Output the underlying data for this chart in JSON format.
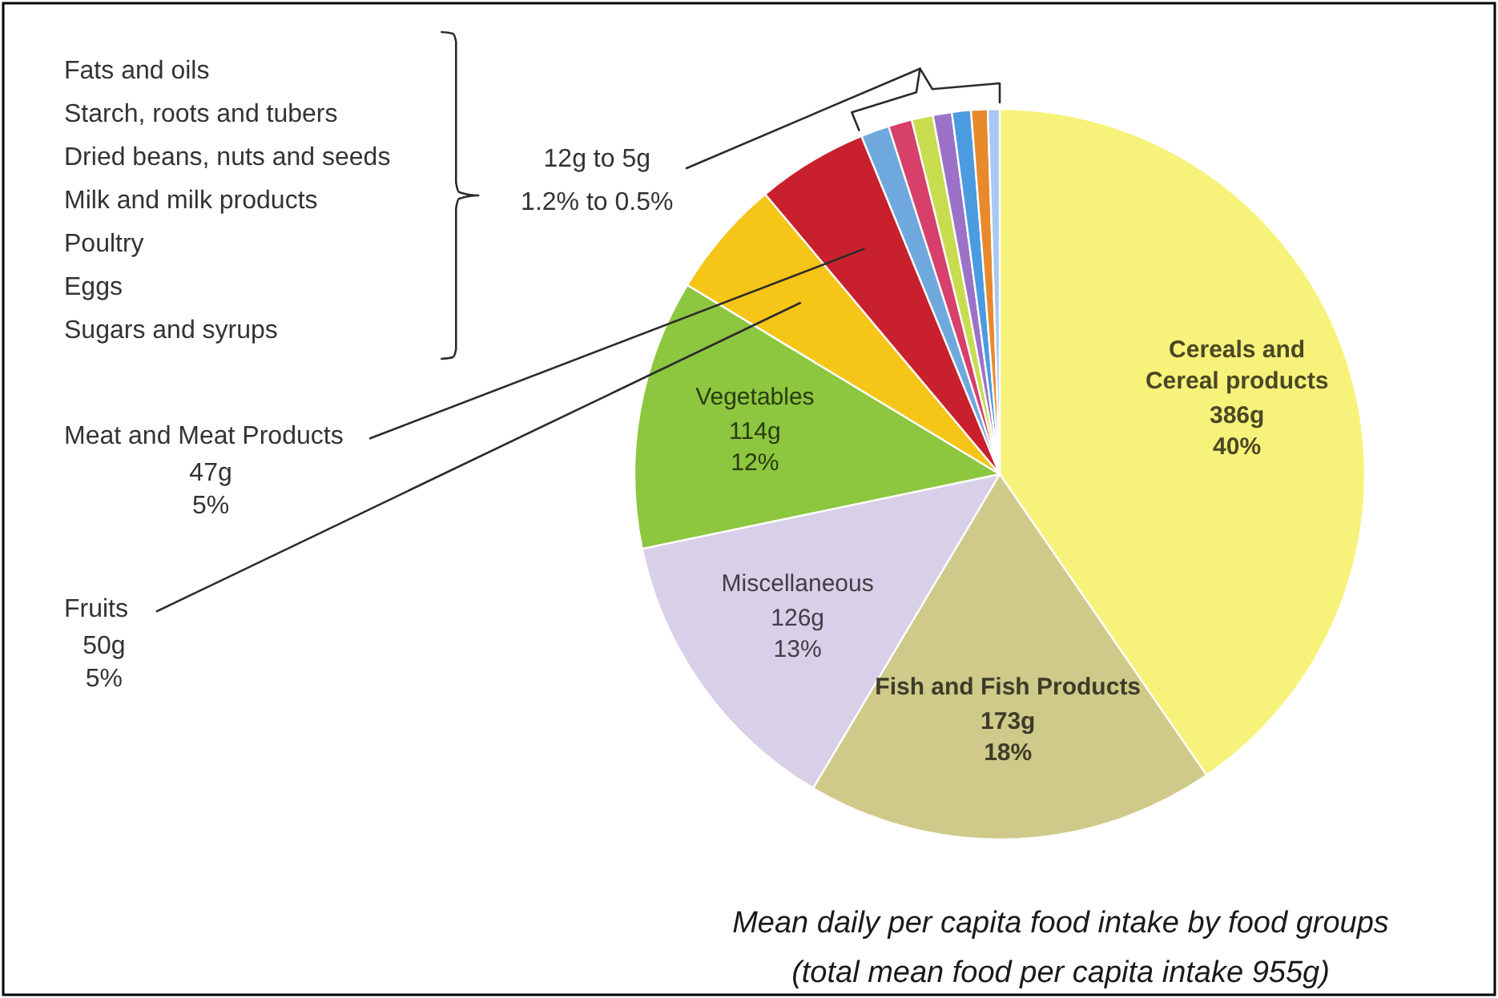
{
  "chart_data": {
    "type": "pie",
    "title": "Mean daily per capita food intake by food groups",
    "subtitle": "(total mean food per capita intake 955g)",
    "categories": [
      "Cereals and\nCereal products",
      "Fish and Fish Products",
      "Miscellaneous",
      "Vegetables",
      "Fruits",
      "Meat and Meat Products",
      null,
      null,
      null,
      null,
      null,
      null,
      null
    ],
    "values": [
      386,
      173,
      126,
      114,
      50,
      47,
      12,
      10,
      9,
      8,
      8,
      7,
      5
    ],
    "colors": [
      "#f7f27a",
      "#cfc98a",
      "#d8cfe8",
      "#8dc63f",
      "#f5c518",
      "#c8202c",
      "#6fa8dc",
      "#d6406a",
      "#c8dc50",
      "#9b72c8",
      "#4b9be0",
      "#e8892c",
      "#a8c8f0"
    ],
    "value_labels": [
      "386g\n40%",
      "173g\n18%",
      "126g\n13%",
      "114g\n12%",
      "50g\n5%",
      "47g\n5%",
      null,
      null,
      null,
      null,
      null,
      null,
      null
    ],
    "annotations": [
      "Fats and oils\nStarch, roots and tubers\nDried beans, nuts and seeds\nMilk and milk products\nPoultry\nEggs\nSugars and syrups",
      "12g to 5g",
      "1.2% to 0.5%"
    ]
  }
}
